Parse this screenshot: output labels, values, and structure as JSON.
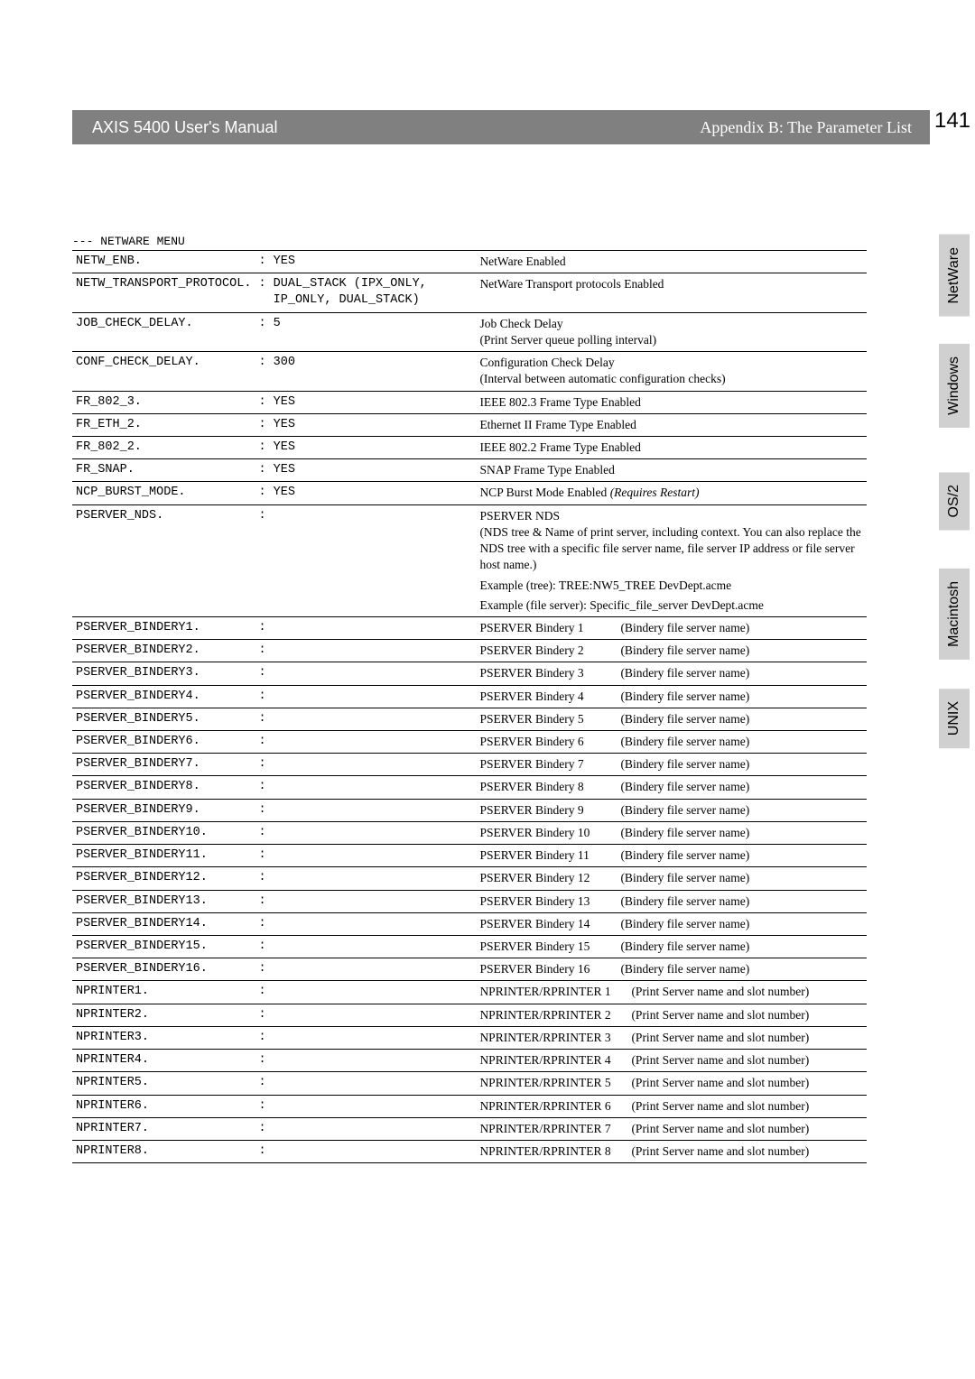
{
  "header": {
    "left": "AXIS 5400 User's Manual",
    "right": "Appendix B: The Parameter List",
    "page_number": "141"
  },
  "section_title": "---  NETWARE MENU",
  "side_tabs": [
    "NetWare",
    "Windows",
    "OS/2",
    "Macintosh",
    "UNIX"
  ],
  "rows": [
    {
      "key": "NETW_ENB.",
      "val": ": YES",
      "desc": "NetWare Enabled"
    },
    {
      "key": "NETW_TRANSPORT_PROTOCOL.",
      "val": ": DUAL_STACK (IPX_ONLY, IP_ONLY, DUAL_STACK)",
      "desc": "NetWare Transport protocols Enabled"
    },
    {
      "key": "JOB_CHECK_DELAY.",
      "val": ": 5",
      "desc": "Job Check Delay\n(Print Server queue polling interval)"
    },
    {
      "key": "CONF_CHECK_DELAY.",
      "val": ": 300",
      "desc": "Configuration Check Delay\n(Interval between automatic configuration checks)"
    },
    {
      "key": "FR_802_3.",
      "val": ": YES",
      "desc": "IEEE 802.3 Frame Type Enabled"
    },
    {
      "key": "FR_ETH_2.",
      "val": ": YES",
      "desc": "Ethernet II Frame Type Enabled"
    },
    {
      "key": "FR_802_2.",
      "val": ": YES",
      "desc": "IEEE 802.2 Frame Type Enabled"
    },
    {
      "key": "FR_SNAP.",
      "val": ": YES",
      "desc": "SNAP Frame Type Enabled"
    },
    {
      "key": "NCP_BURST_MODE.",
      "val": ": YES",
      "desc": "NCP Burst Mode Enabled  <span class=\"italic\">(Requires Restart)</span>"
    },
    {
      "key": "PSERVER_NDS.",
      "val": ":",
      "desc": "PSERVER NDS\n(NDS tree & Name of print server, including context. You can also replace the NDS tree with a specific file server name, file server IP address or file server host name.)\nExample (tree): TREE:NW5_TREE DevDept.acme\nExample (file server): Specific_file_server DevDept.acme",
      "tall": true
    },
    {
      "key": "PSERVER_BINDERY1.",
      "val": ":",
      "desc": "PSERVER Bindery 1",
      "sub": "(Bindery file server name)"
    },
    {
      "key": "PSERVER_BINDERY2.",
      "val": ":",
      "desc": "PSERVER Bindery 2",
      "sub": "(Bindery file server name)"
    },
    {
      "key": "PSERVER_BINDERY3.",
      "val": ":",
      "desc": "PSERVER Bindery 3",
      "sub": "(Bindery file server name)"
    },
    {
      "key": "PSERVER_BINDERY4.",
      "val": ":",
      "desc": "PSERVER Bindery 4",
      "sub": "(Bindery file server name)"
    },
    {
      "key": "PSERVER_BINDERY5.",
      "val": ":",
      "desc": "PSERVER Bindery 5",
      "sub": "(Bindery file server name)"
    },
    {
      "key": "PSERVER_BINDERY6.",
      "val": ":",
      "desc": "PSERVER Bindery 6",
      "sub": "(Bindery file server name)"
    },
    {
      "key": "PSERVER_BINDERY7.",
      "val": ":",
      "desc": "PSERVER Bindery 7",
      "sub": "(Bindery file server name)"
    },
    {
      "key": "PSERVER_BINDERY8.",
      "val": ":",
      "desc": "PSERVER Bindery 8",
      "sub": "(Bindery file server name)"
    },
    {
      "key": "PSERVER_BINDERY9.",
      "val": ":",
      "desc": "PSERVER Bindery 9",
      "sub": "(Bindery file server name)"
    },
    {
      "key": "PSERVER_BINDERY10.",
      "val": ":",
      "desc": "PSERVER Bindery 10",
      "sub": "(Bindery file server name)"
    },
    {
      "key": "PSERVER_BINDERY11.",
      "val": ":",
      "desc": "PSERVER Bindery 11",
      "sub": "(Bindery file server name)"
    },
    {
      "key": "PSERVER_BINDERY12.",
      "val": ":",
      "desc": "PSERVER Bindery 12",
      "sub": "(Bindery file server name)"
    },
    {
      "key": "PSERVER_BINDERY13.",
      "val": ":",
      "desc": "PSERVER Bindery 13",
      "sub": "(Bindery file server name)"
    },
    {
      "key": "PSERVER_BINDERY14.",
      "val": ":",
      "desc": "PSERVER Bindery 14",
      "sub": "(Bindery file server name)"
    },
    {
      "key": "PSERVER_BINDERY15.",
      "val": ":",
      "desc": "PSERVER Bindery 15",
      "sub": "(Bindery file server name)"
    },
    {
      "key": "PSERVER_BINDERY16.",
      "val": ":",
      "desc": "PSERVER Bindery 16",
      "sub": "(Bindery file server name)"
    },
    {
      "key": "NPRINTER1.",
      "val": ":",
      "desc": "NPRINTER/RPRINTER 1",
      "sub": "(Print Server name and slot number)",
      "wide": true
    },
    {
      "key": "NPRINTER2.",
      "val": ":",
      "desc": "NPRINTER/RPRINTER 2",
      "sub": "(Print Server name and slot number)",
      "wide": true
    },
    {
      "key": "NPRINTER3.",
      "val": ":",
      "desc": "NPRINTER/RPRINTER 3",
      "sub": "(Print Server name and slot number)",
      "wide": true
    },
    {
      "key": "NPRINTER4.",
      "val": ":",
      "desc": "NPRINTER/RPRINTER 4",
      "sub": "(Print Server name and slot number)",
      "wide": true
    },
    {
      "key": "NPRINTER5.",
      "val": ":",
      "desc": "NPRINTER/RPRINTER 5",
      "sub": "(Print Server name and slot number)",
      "wide": true
    },
    {
      "key": "NPRINTER6.",
      "val": ":",
      "desc": "NPRINTER/RPRINTER 6",
      "sub": "(Print Server name and slot number)",
      "wide": true
    },
    {
      "key": "NPRINTER7.",
      "val": ":",
      "desc": "NPRINTER/RPRINTER 7",
      "sub": "(Print Server name and slot number)",
      "wide": true
    },
    {
      "key": "NPRINTER8.",
      "val": ":",
      "desc": "NPRINTER/RPRINTER 8",
      "sub": "(Print Server name and slot number)",
      "wide": true
    }
  ]
}
